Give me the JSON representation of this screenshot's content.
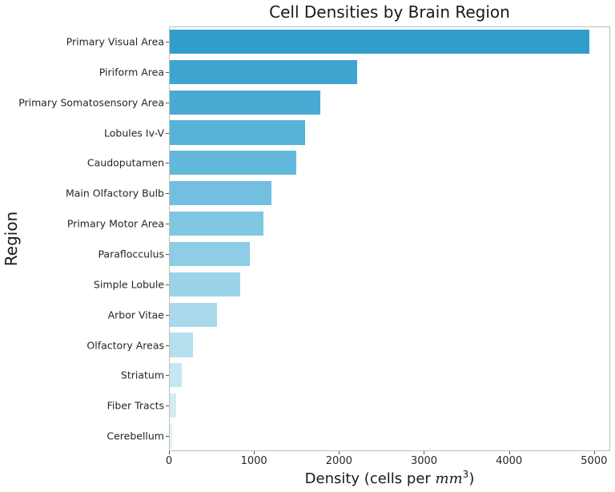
{
  "chart_data": {
    "type": "bar",
    "orientation": "horizontal",
    "title": "Cell Densities by Brain Region",
    "xlabel": "Density (cells per mm^3)",
    "xlabel_parts": {
      "prefix": "Density (cells per ",
      "italic": "mm",
      "sup": "3",
      "suffix": ")"
    },
    "ylabel": "Region",
    "xlim": [
      0,
      5190
    ],
    "xticks": [
      0,
      1000,
      2000,
      3000,
      4000,
      5000
    ],
    "grid": false,
    "legend": null,
    "categories": [
      "Primary Visual Area",
      "Piriform Area",
      "Primary Somatosensory Area",
      "Lobules Iv-V",
      "Caudoputamen",
      "Main Olfactory Bulb",
      "Primary Motor Area",
      "Paraflocculus",
      "Simple Lobule",
      "Arbor Vitae",
      "Olfactory Areas",
      "Striatum",
      "Fiber Tracts",
      "Cerebellum"
    ],
    "values": [
      4940,
      2200,
      1770,
      1590,
      1490,
      1200,
      1100,
      940,
      825,
      560,
      275,
      137,
      74,
      26
    ],
    "colors": [
      "#319dcb",
      "#3ea4d0",
      "#4aaad3",
      "#57b2d8",
      "#63b9db",
      "#72bfdf",
      "#80c7e2",
      "#8ecde5",
      "#9bd3e8",
      "#a9d9eb",
      "#b7e0ee",
      "#c6e6f1",
      "#d4edf4",
      "#e2f3f7"
    ]
  }
}
